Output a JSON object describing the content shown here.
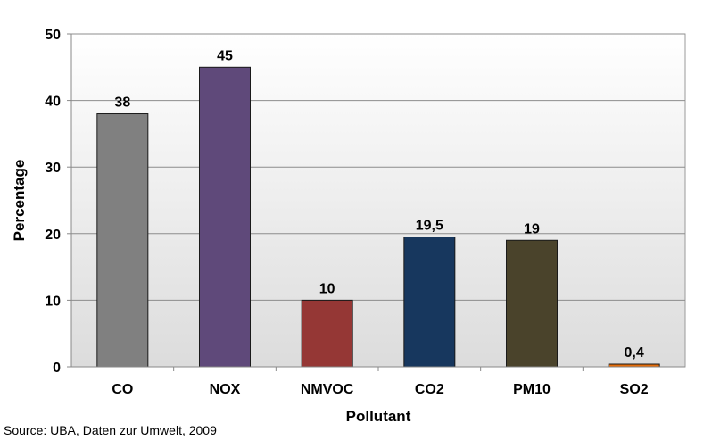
{
  "chart_data": {
    "type": "bar",
    "categories": [
      "CO",
      "NOX",
      "NMVOC",
      "CO2",
      "PM10",
      "SO2"
    ],
    "values": [
      38,
      45,
      10,
      19.5,
      19,
      0.4
    ],
    "data_labels": [
      "38",
      "45",
      "10",
      "19,5",
      "19",
      "0,4"
    ],
    "colors": [
      "#808080",
      "#5f497a",
      "#953735",
      "#17375e",
      "#4a432b",
      "#e46c0a"
    ],
    "xlabel": "Pollutant",
    "ylabel": "Percentage",
    "ylim": [
      0,
      50
    ],
    "yticks": [
      0,
      10,
      20,
      30,
      40,
      50
    ],
    "grid": true,
    "source": "Source: UBA, Daten zur Umwelt, 2009"
  }
}
